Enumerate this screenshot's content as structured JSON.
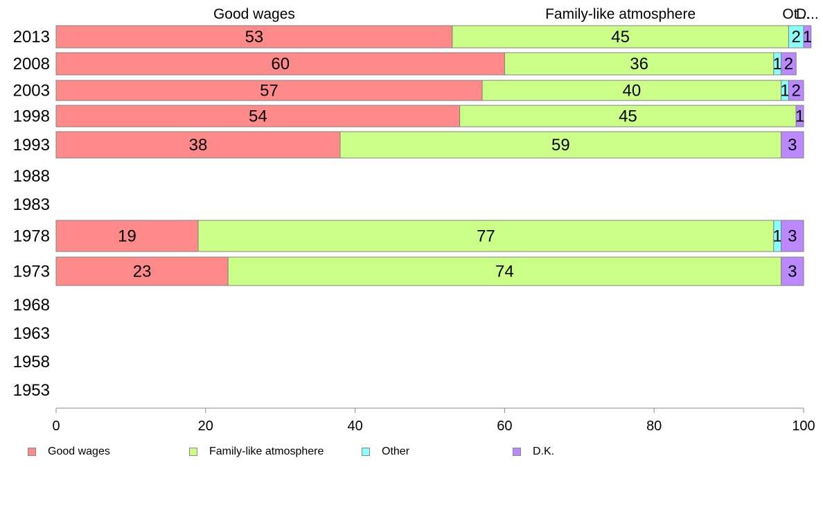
{
  "chart_data": {
    "type": "bar",
    "orientation": "horizontal",
    "stacked": true,
    "categories": [
      "2013",
      "2008",
      "2003",
      "1998",
      "1993",
      "1988",
      "1983",
      "1978",
      "1973",
      "1968",
      "1963",
      "1958",
      "1953"
    ],
    "series": [
      {
        "name": "Good wages",
        "color": "#ff8a8a",
        "values": [
          53,
          60,
          57,
          54,
          38,
          null,
          null,
          19,
          23,
          null,
          null,
          null,
          null
        ]
      },
      {
        "name": "Family-like atmosphere",
        "color": "#ccff88",
        "values": [
          45,
          36,
          40,
          45,
          59,
          null,
          null,
          77,
          74,
          null,
          null,
          null,
          null
        ]
      },
      {
        "name": "Other",
        "color": "#88ffff",
        "values": [
          2,
          1,
          1,
          0,
          0,
          null,
          null,
          1,
          0,
          null,
          null,
          null,
          null
        ]
      },
      {
        "name": "D.K.",
        "color": "#bb88ff",
        "values": [
          1,
          2,
          2,
          1,
          3,
          null,
          null,
          3,
          3,
          null,
          null,
          null,
          null
        ]
      }
    ],
    "top_labels": [
      "Good wages",
      "Family-like atmosphere",
      "Ot...",
      "D..."
    ],
    "xlim": [
      0,
      100
    ],
    "xticks": [
      0,
      20,
      40,
      60,
      80,
      100
    ],
    "legend_position": "bottom",
    "grid": false
  }
}
